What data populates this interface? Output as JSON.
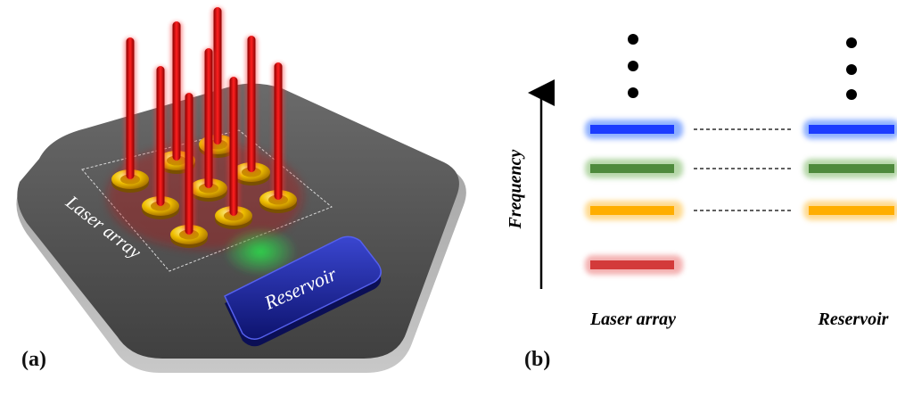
{
  "panel_a": {
    "label": "(a)",
    "array_label": "Laser array",
    "reservoir_label": "Reservoir",
    "beam_color": "#e00000",
    "contact_color": "#e8b300",
    "emission_color": "#22c83a",
    "reservoir_color": "#1e2aa8",
    "board_color": "#4a4a4a"
  },
  "panel_b": {
    "label": "(b)",
    "axis_label": "Frequency",
    "left_label": "Laser array",
    "right_label": "Reservoir",
    "left_levels": [
      {
        "color": "#1c3cff",
        "glow": "#7aa2ff"
      },
      {
        "color": "#4e8a3c",
        "glow": "#a9d09a"
      },
      {
        "color": "#ffae00",
        "glow": "#ffd37a"
      },
      {
        "color": "#d33a3a",
        "glow": "#f2a3a3"
      }
    ],
    "right_levels": [
      {
        "color": "#1c3cff",
        "glow": "#7aa2ff"
      },
      {
        "color": "#4e8a3c",
        "glow": "#a9d09a"
      },
      {
        "color": "#ffae00",
        "glow": "#ffd37a"
      }
    ]
  }
}
